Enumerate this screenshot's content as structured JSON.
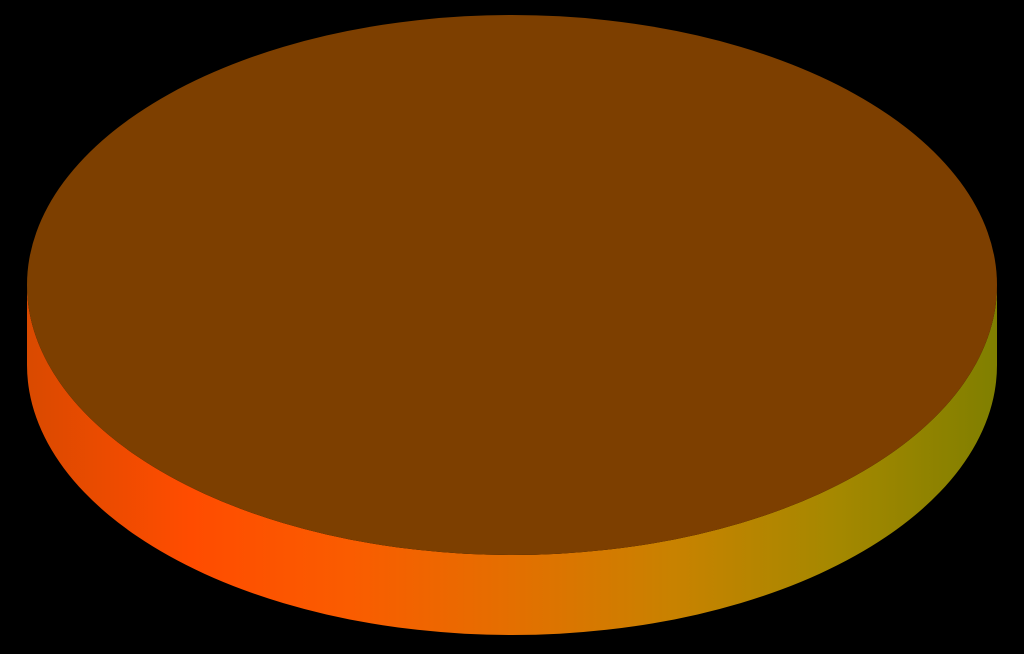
{
  "colors": {
    "background": "#000000",
    "top_face": "#7d3f00",
    "side_gradient": [
      "#d94a00",
      "#ff4c00",
      "#fa5c00",
      "#e46f00",
      "#c88200",
      "#a58800",
      "#807f00"
    ]
  }
}
